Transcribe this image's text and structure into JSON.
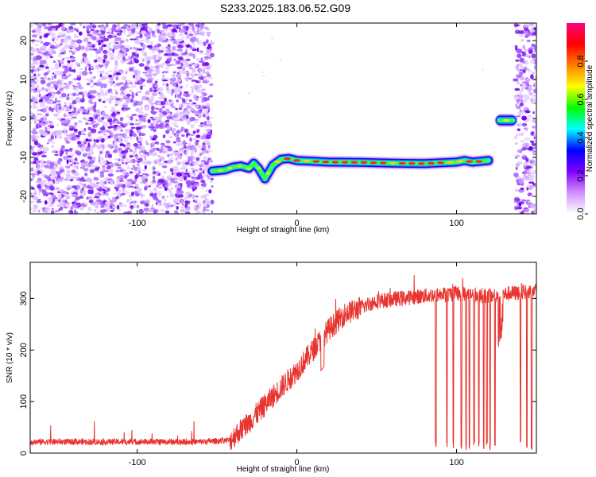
{
  "title": "S233.2025.183.06.52.G09",
  "chart_data": [
    {
      "type": "heatmap",
      "xlabel": "Height of straight line (km)",
      "ylabel": "Frequency (Hz)",
      "xlim": [
        -167,
        150
      ],
      "ylim": [
        -24.5,
        24.5
      ],
      "xticks": [
        -100,
        0,
        100
      ],
      "yticks": [
        -20,
        -10,
        0,
        10,
        20
      ],
      "colorbar": {
        "label": "Normalized spectral amplitude",
        "range": [
          0,
          1
        ],
        "ticks": [
          "0.0",
          "0.2",
          "0.4",
          "0.6",
          "0.8"
        ],
        "colors": [
          "#ffffff",
          "#d090ff",
          "#8000ff",
          "#0000ff",
          "#00ffff",
          "#00ff00",
          "#ffff00",
          "#ff8000",
          "#ff0000",
          "#ff0080"
        ]
      },
      "noise_regions_x": [
        [
          -167,
          -53
        ],
        [
          137,
          150
        ]
      ],
      "ridge": {
        "x": [
          -53,
          -45,
          -40,
          -35,
          -30,
          -27,
          -24,
          -20,
          -15,
          -10,
          -5,
          0,
          20,
          40,
          60,
          80,
          100,
          105,
          110,
          115,
          120
        ],
        "y": [
          -13.5,
          -13.2,
          -12.5,
          -12.2,
          -12.8,
          -11.5,
          -12.8,
          -15.5,
          -12.0,
          -10.5,
          -10.3,
          -10.8,
          -11.2,
          -11.3,
          -11.5,
          -11.6,
          -11.2,
          -10.8,
          -11.2,
          -11.0,
          -10.8
        ]
      },
      "blob": {
        "x": [
          126,
          136
        ],
        "y": -0.5
      }
    },
    {
      "type": "line",
      "xlabel": "Height of straight line (km)",
      "ylabel": "SNR (10 * v/v)",
      "xlim": [
        -167,
        150
      ],
      "ylim": [
        0,
        370
      ],
      "xticks": [
        -100,
        0,
        100
      ],
      "yticks": [
        0,
        100,
        200,
        300
      ],
      "color": "#e8332e",
      "envelope": {
        "x": [
          -167,
          -60,
          -42,
          -30,
          -15,
          0,
          10,
          20,
          30,
          50,
          80,
          100,
          120,
          150
        ],
        "y": [
          22,
          22,
          25,
          60,
          110,
          160,
          200,
          240,
          270,
          295,
          305,
          310,
          305,
          315
        ]
      },
      "dropouts_x": [
        87,
        94,
        98,
        103,
        106,
        108,
        111,
        114,
        117,
        119,
        121,
        124,
        127,
        140,
        144,
        147
      ]
    }
  ]
}
